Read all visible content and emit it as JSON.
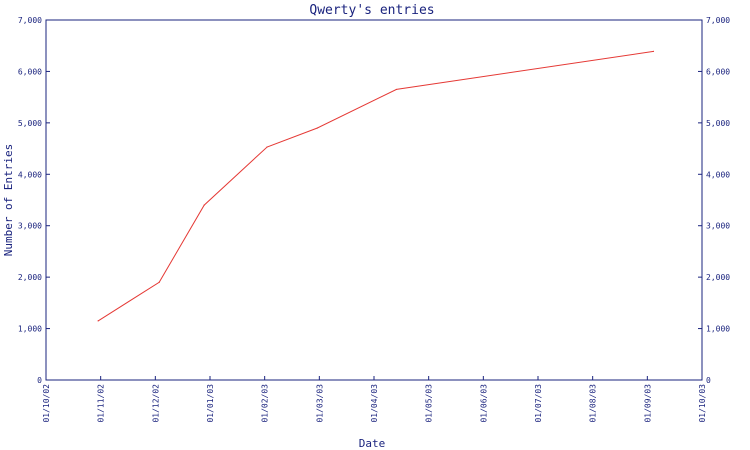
{
  "chart_data": {
    "type": "line",
    "title": "Qwerty's entries",
    "xlabel": "Date",
    "ylabel": "Number of Entries",
    "x_ticks": [
      "01/10/02",
      "01/11/02",
      "01/12/02",
      "01/01/03",
      "01/02/03",
      "01/03/03",
      "01/04/03",
      "01/05/03",
      "01/06/03",
      "01/07/03",
      "01/08/03",
      "01/09/03",
      "01/10/03"
    ],
    "y_ticks": [
      "0",
      "1,000",
      "2,000",
      "3,000",
      "4,000",
      "5,000",
      "6,000",
      "7,000"
    ],
    "ylim": [
      0,
      7000
    ],
    "xlim": [
      "2002-10-01",
      "2003-10-01"
    ],
    "series": [
      {
        "color": "#e53935",
        "points": [
          {
            "x": "2002-10-30",
            "y": 1150
          },
          {
            "x": "2002-12-03",
            "y": 1900
          },
          {
            "x": "2002-12-28",
            "y": 3400
          },
          {
            "x": "2003-02-01",
            "y": 4530
          },
          {
            "x": "2003-03-01",
            "y": 4900
          },
          {
            "x": "2003-04-14",
            "y": 5650
          },
          {
            "x": "2003-09-04",
            "y": 6390
          }
        ]
      }
    ],
    "grid": false,
    "secondary_y_axis": true
  }
}
